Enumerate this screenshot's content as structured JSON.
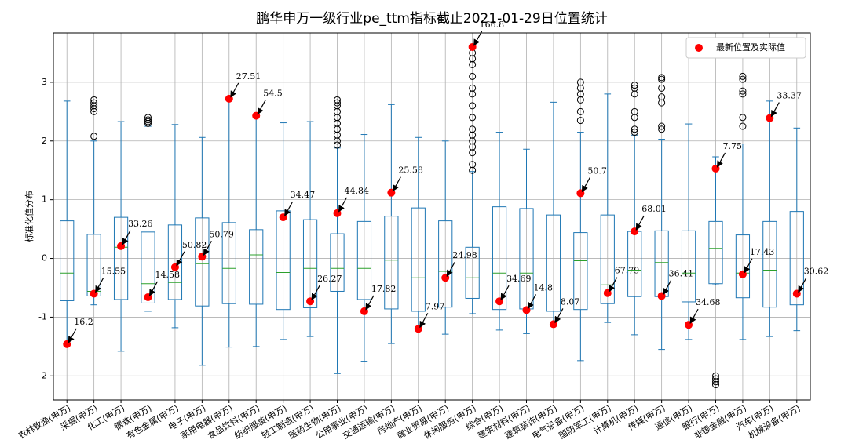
{
  "chart_data": {
    "type": "box",
    "title": "鹏华申万一级行业pe_ttm指标截止2021-01-29日位置统计",
    "y_label": "标准化值分布",
    "categories": [
      "农林牧渔(申万)",
      "采掘(申万)",
      "化工(申万)",
      "钢铁(申万)",
      "有色金属(申万)",
      "电子(申万)",
      "家用电器(申万)",
      "食品饮料(申万)",
      "纺织服装(申万)",
      "轻工制造(申万)",
      "医药生物(申万)",
      "公用事业(申万)",
      "交通运输(申万)",
      "房地产(申万)",
      "商业贸易(申万)",
      "休闲服务(申万)",
      "综合(申万)",
      "建筑材料(申万)",
      "建筑装饰(申万)",
      "电气设备(申万)",
      "国防军工(申万)",
      "计算机(申万)",
      "传媒(申万)",
      "通信(申万)",
      "银行(申万)",
      "非银金融(申万)",
      "汽车(申万)",
      "机械设备(申万)"
    ],
    "whislo": [
      -1.45,
      -0.79,
      -1.58,
      -0.9,
      -1.18,
      -1.82,
      -1.51,
      -1.5,
      -1.38,
      -1.33,
      -1.96,
      -1.75,
      -1.45,
      -1.2,
      -1.29,
      -0.94,
      -1.22,
      -1.28,
      -1.1,
      -1.74,
      -1.09,
      -1.3,
      -1.55,
      -1.38,
      -0.45,
      -1.38,
      -1.33,
      -1.23
    ],
    "q1": [
      -0.72,
      -0.64,
      -0.7,
      -0.76,
      -0.7,
      -0.81,
      -0.77,
      -0.78,
      -0.87,
      -0.84,
      -0.56,
      -0.7,
      -0.86,
      -0.9,
      -0.83,
      -0.68,
      -0.87,
      -0.86,
      -0.9,
      -0.87,
      -0.77,
      -0.65,
      -0.65,
      -0.74,
      -0.43,
      -0.67,
      -0.83,
      -0.79
    ],
    "med": [
      -0.25,
      -0.56,
      0.19,
      -0.43,
      -0.41,
      -0.09,
      -0.17,
      0.06,
      -0.24,
      -0.17,
      -0.17,
      -0.17,
      -0.03,
      -0.33,
      -0.22,
      -0.33,
      -0.25,
      -0.25,
      -0.4,
      -0.04,
      -0.45,
      -0.2,
      -0.07,
      -0.25,
      0.17,
      -0.25,
      -0.2,
      -0.52
    ],
    "q3": [
      0.64,
      0.41,
      0.7,
      0.45,
      0.57,
      0.69,
      0.61,
      0.49,
      0.81,
      0.66,
      0.42,
      0.63,
      0.72,
      0.86,
      0.64,
      0.19,
      0.88,
      0.85,
      0.74,
      0.44,
      0.74,
      0.46,
      0.47,
      0.47,
      0.63,
      0.4,
      0.63,
      0.8
    ],
    "whishi": [
      2.68,
      2.0,
      2.33,
      2.25,
      2.28,
      2.06,
      2.72,
      2.45,
      2.31,
      2.33,
      1.88,
      2.11,
      2.62,
      2.06,
      2.0,
      1.48,
      2.15,
      1.86,
      2.66,
      2.15,
      2.8,
      2.1,
      2.03,
      2.29,
      1.73,
      1.95,
      2.68,
      2.22
    ],
    "fliers": [
      [],
      [
        2.08,
        2.5,
        2.55,
        2.6,
        2.65,
        2.7
      ],
      [],
      [
        2.3,
        2.33,
        2.36,
        2.4
      ],
      [],
      [],
      [],
      [],
      [],
      [],
      [
        1.93,
        2.0,
        2.1,
        2.2,
        2.3,
        2.4,
        2.5,
        2.6,
        2.65,
        2.7
      ],
      [],
      [],
      [],
      [],
      [
        1.5,
        1.6,
        1.8,
        1.9,
        2.0,
        2.1,
        2.2,
        2.4,
        2.6,
        2.8,
        2.9,
        3.1,
        3.3,
        3.4,
        3.5
      ],
      [],
      [],
      [],
      [
        2.35,
        2.5,
        2.7,
        2.8,
        2.9,
        3.0
      ],
      [],
      [
        2.15,
        2.2,
        2.4,
        2.5,
        2.8,
        2.9,
        2.95
      ],
      [
        2.2,
        2.25,
        2.65,
        2.75,
        2.9,
        3.05,
        3.08
      ],
      [],
      [
        -2.0,
        -2.05,
        -2.1,
        -2.15
      ],
      [
        2.25,
        2.4,
        2.8,
        2.85,
        3.05,
        3.1
      ],
      [],
      []
    ],
    "latest": [
      -1.46,
      -0.6,
      0.21,
      -0.66,
      -0.15,
      0.03,
      2.72,
      2.43,
      0.7,
      -0.73,
      0.77,
      -0.9,
      1.12,
      -1.2,
      -0.33,
      3.6,
      -0.73,
      -0.88,
      -1.12,
      1.11,
      -0.59,
      0.46,
      -0.64,
      -1.13,
      1.53,
      -0.27,
      2.39,
      -0.6
    ],
    "latest_values": [
      16.2,
      15.55,
      33.26,
      14.58,
      50.82,
      50.79,
      27.51,
      54.5,
      34.47,
      26.27,
      44.84,
      17.82,
      25.58,
      7.97,
      24.98,
      166.8,
      34.69,
      14.8,
      8.07,
      50.7,
      67.79,
      68.01,
      36.41,
      34.68,
      7.75,
      17.43,
      33.37,
      30.62
    ],
    "legend": {
      "label": "最新位置及实际值",
      "loc": "upper right"
    },
    "box_color": "#1f77b4",
    "median_color": "#2ca02c",
    "point_color": "#ff0000",
    "ylim": [
      -2.41,
      3.84
    ],
    "yticks": [
      -2,
      -1,
      0,
      1,
      2,
      3
    ],
    "grid": true
  }
}
